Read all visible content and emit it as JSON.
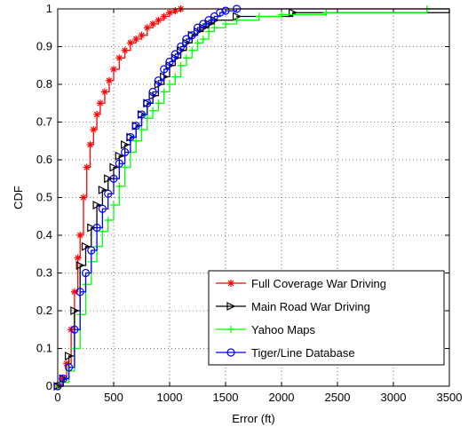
{
  "chart_data": {
    "type": "line",
    "title": "",
    "xlabel": "Error (ft)",
    "ylabel": "CDF",
    "xlim": [
      0,
      3500
    ],
    "ylim": [
      0,
      1
    ],
    "xticks": [
      0,
      500,
      1000,
      1500,
      2000,
      2500,
      3000,
      3500
    ],
    "yticks": [
      0,
      0.1,
      0.2,
      0.3,
      0.4,
      0.5,
      0.6,
      0.7,
      0.8,
      0.9,
      1
    ],
    "xtick_labels": [
      "0",
      "500",
      "1000",
      "1500",
      "2000",
      "2500",
      "3000",
      "3500"
    ],
    "ytick_labels": [
      "0",
      "0.1",
      "0.2",
      "0.3",
      "0.4",
      "0.5",
      "0.6",
      "0.7",
      "0.8",
      "0.9",
      "1"
    ],
    "grid": true,
    "legend_position": "bottom-right",
    "series": [
      {
        "name": "Full Coverage War Driving",
        "color": "#ff0000",
        "marker": "asterisk",
        "x": [
          0,
          40,
          80,
          120,
          150,
          180,
          200,
          230,
          260,
          290,
          320,
          350,
          380,
          420,
          460,
          500,
          550,
          600,
          650,
          700,
          750,
          800,
          850,
          900,
          950,
          1000,
          1050,
          1100,
          3500
        ],
        "y": [
          0,
          0.02,
          0.06,
          0.15,
          0.25,
          0.34,
          0.4,
          0.5,
          0.58,
          0.64,
          0.68,
          0.72,
          0.75,
          0.78,
          0.81,
          0.84,
          0.87,
          0.89,
          0.91,
          0.92,
          0.93,
          0.95,
          0.96,
          0.97,
          0.98,
          0.99,
          0.995,
          1.0,
          1.0
        ]
      },
      {
        "name": "Main Road War Driving",
        "color": "#000000",
        "marker": "triangle-right",
        "x": [
          0,
          50,
          100,
          150,
          200,
          250,
          300,
          350,
          400,
          450,
          500,
          550,
          600,
          650,
          700,
          750,
          800,
          850,
          900,
          950,
          1000,
          1050,
          1100,
          1150,
          1200,
          1250,
          1300,
          1350,
          1400,
          1600,
          2100,
          3500
        ],
        "y": [
          0,
          0.02,
          0.08,
          0.2,
          0.32,
          0.37,
          0.42,
          0.48,
          0.52,
          0.55,
          0.58,
          0.61,
          0.64,
          0.66,
          0.69,
          0.72,
          0.75,
          0.77,
          0.8,
          0.82,
          0.85,
          0.87,
          0.89,
          0.91,
          0.93,
          0.94,
          0.95,
          0.96,
          0.97,
          0.98,
          0.99,
          1.0
        ]
      },
      {
        "name": "Yahoo Maps",
        "color": "#00ff00",
        "marker": "plus",
        "x": [
          0,
          50,
          100,
          150,
          200,
          250,
          300,
          350,
          400,
          450,
          500,
          550,
          600,
          650,
          700,
          750,
          800,
          850,
          900,
          950,
          1000,
          1050,
          1100,
          1150,
          1200,
          1250,
          1300,
          1350,
          1400,
          1500,
          1600,
          1800,
          2000,
          2400,
          3300,
          3500
        ],
        "y": [
          0,
          0.01,
          0.04,
          0.1,
          0.19,
          0.27,
          0.33,
          0.37,
          0.41,
          0.44,
          0.48,
          0.53,
          0.58,
          0.62,
          0.65,
          0.68,
          0.71,
          0.73,
          0.75,
          0.78,
          0.8,
          0.82,
          0.85,
          0.87,
          0.89,
          0.91,
          0.92,
          0.94,
          0.95,
          0.96,
          0.97,
          0.98,
          0.985,
          0.99,
          1.0,
          1.0
        ]
      },
      {
        "name": "Tiger/Line Database",
        "color": "#0000ff",
        "marker": "circle",
        "x": [
          0,
          50,
          100,
          150,
          200,
          250,
          300,
          350,
          400,
          450,
          500,
          550,
          600,
          650,
          700,
          750,
          800,
          850,
          900,
          950,
          1000,
          1050,
          1100,
          1150,
          1200,
          1250,
          1300,
          1350,
          1400,
          1450,
          1500,
          1600,
          3500
        ],
        "y": [
          0,
          0.02,
          0.05,
          0.15,
          0.25,
          0.3,
          0.36,
          0.42,
          0.47,
          0.51,
          0.55,
          0.59,
          0.62,
          0.66,
          0.69,
          0.72,
          0.75,
          0.78,
          0.81,
          0.84,
          0.86,
          0.88,
          0.9,
          0.92,
          0.93,
          0.95,
          0.96,
          0.97,
          0.98,
          0.99,
          0.995,
          1.0,
          1.0
        ]
      }
    ]
  }
}
